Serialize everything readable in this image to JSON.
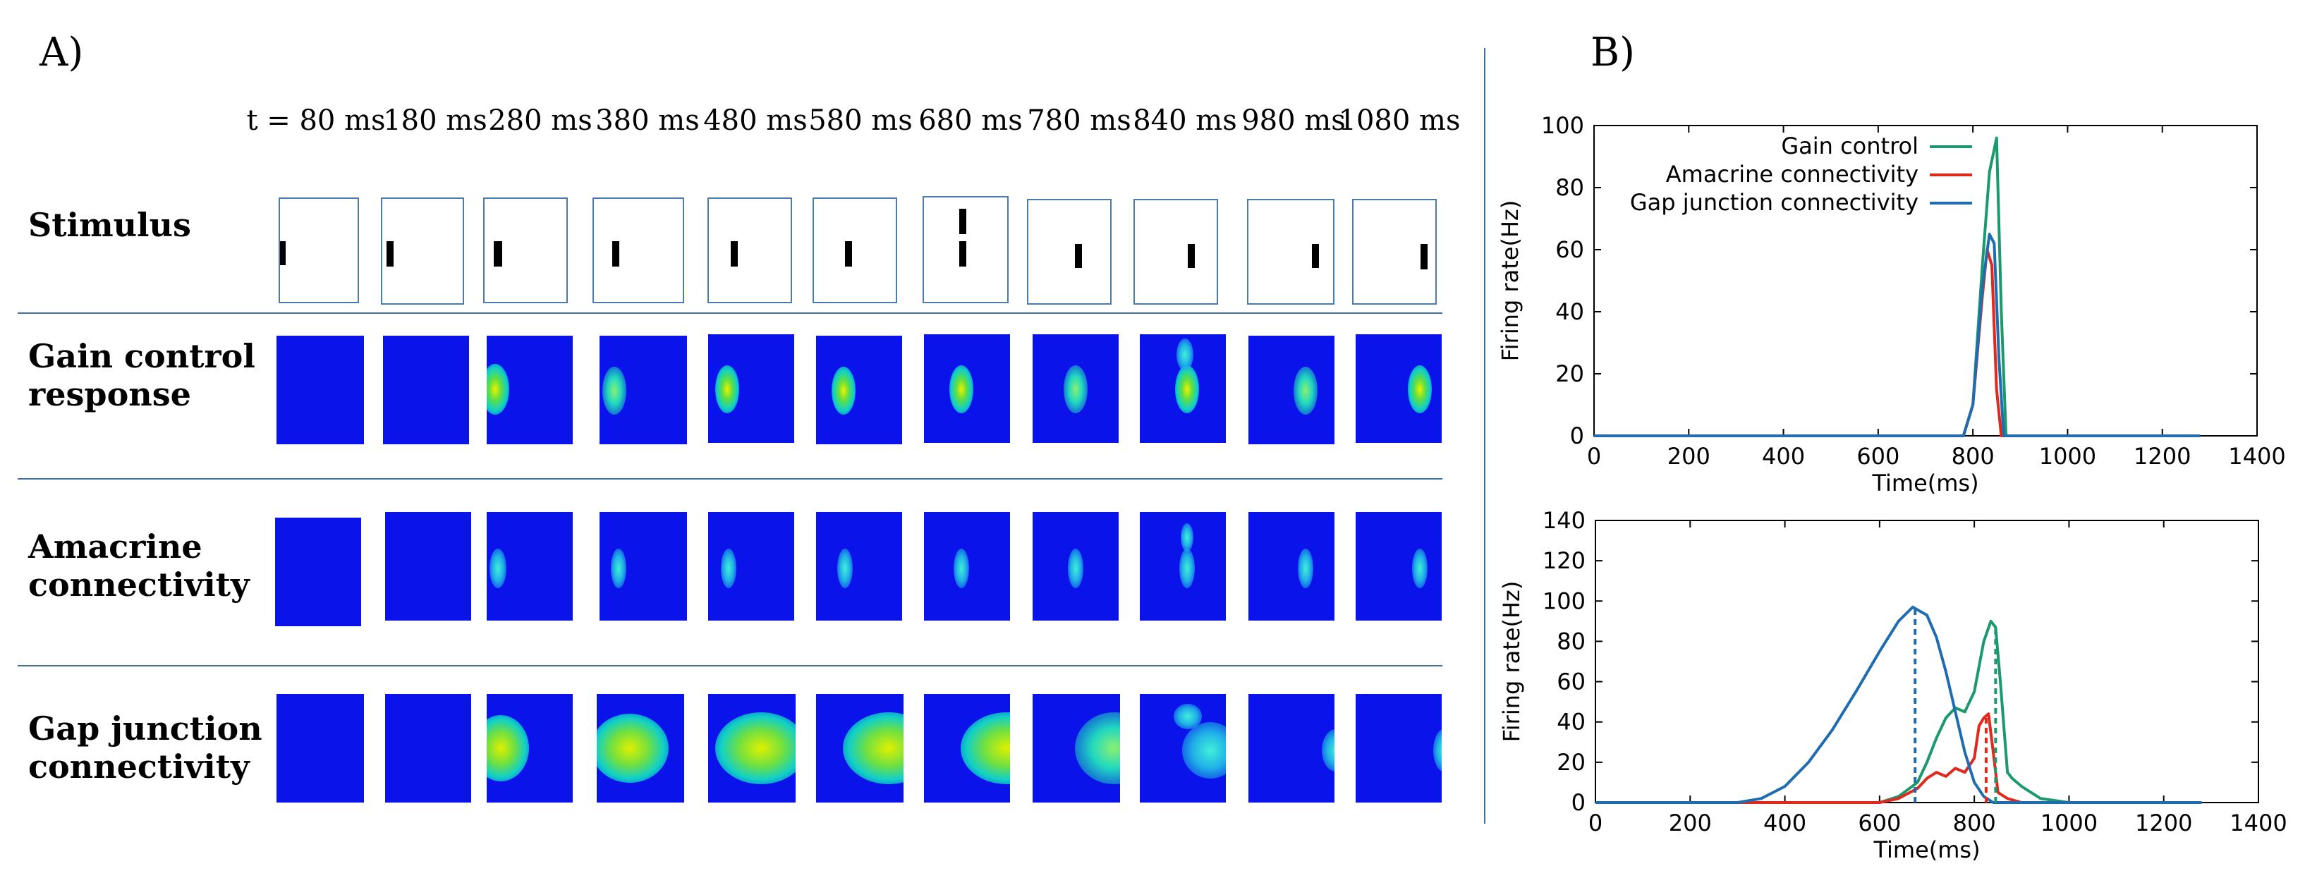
{
  "panel_a": {
    "label": "A)",
    "time_labels": [
      "t = 80 ms",
      "180 ms",
      "280 ms",
      "380 ms",
      "480 ms",
      "580 ms",
      "680 ms",
      "780 ms",
      "840 ms",
      "980 ms",
      "1080 ms"
    ],
    "rows": [
      {
        "label_line1": "Stimulus",
        "label_line2": ""
      },
      {
        "label_line1": "Gain control",
        "label_line2": "response"
      },
      {
        "label_line1": "Amacrine",
        "label_line2": "connectivity"
      },
      {
        "label_line1": "Gap junction",
        "label_line2": "connectivity"
      }
    ],
    "colors": {
      "heatmap_background": "#0a14ea",
      "frame_border": "#4a79b4",
      "separator": "#3f6ea8"
    }
  },
  "panel_b": {
    "label": "B)"
  },
  "chart_data": [
    {
      "type": "line",
      "xlabel": "Time(ms)",
      "ylabel": "Firing rate(Hz)",
      "xlim": [
        0,
        1400
      ],
      "ylim": [
        0,
        100
      ],
      "xticks": [
        0,
        200,
        400,
        600,
        800,
        1000,
        1200,
        1400
      ],
      "yticks": [
        0,
        20,
        40,
        60,
        80,
        100
      ],
      "legend_position": "top-right",
      "series": [
        {
          "name": "Gain control",
          "color": "#1a9a6c",
          "x": [
            0,
            780,
            800,
            820,
            835,
            850,
            860,
            870,
            890,
            1280
          ],
          "y": [
            0,
            0,
            10,
            55,
            85,
            96,
            40,
            0,
            0,
            0
          ]
        },
        {
          "name": "Amacrine connectivity",
          "color": "#e0281c",
          "x": [
            0,
            780,
            800,
            820,
            830,
            840,
            850,
            860,
            1280
          ],
          "y": [
            0,
            0,
            10,
            45,
            60,
            55,
            15,
            0,
            0
          ]
        },
        {
          "name": "Gap junction connectivity",
          "color": "#1f6cb0",
          "x": [
            0,
            780,
            800,
            820,
            835,
            845,
            855,
            865,
            890,
            1280
          ],
          "y": [
            0,
            0,
            10,
            48,
            65,
            62,
            25,
            0,
            0,
            0
          ]
        }
      ]
    },
    {
      "type": "line",
      "xlabel": "Time(ms)",
      "ylabel": "Firing rate(Hz)",
      "xlim": [
        0,
        1400
      ],
      "ylim": [
        0,
        140
      ],
      "xticks": [
        0,
        200,
        400,
        600,
        800,
        1000,
        1200,
        1400
      ],
      "yticks": [
        0,
        20,
        40,
        60,
        80,
        100,
        120,
        140
      ],
      "series": [
        {
          "color": "#1a9a6c",
          "x": [
            0,
            600,
            640,
            680,
            700,
            720,
            740,
            760,
            780,
            800,
            820,
            835,
            845,
            855,
            870,
            880,
            900,
            940,
            1000,
            1280
          ],
          "y": [
            0,
            0,
            3,
            10,
            20,
            32,
            42,
            47,
            45,
            55,
            80,
            90,
            87,
            60,
            15,
            12,
            8,
            2,
            0,
            0
          ]
        },
        {
          "color": "#e0281c",
          "x": [
            0,
            600,
            640,
            680,
            700,
            720,
            740,
            760,
            780,
            800,
            810,
            820,
            830,
            840,
            850,
            870,
            900,
            1280
          ],
          "y": [
            0,
            0,
            2,
            7,
            12,
            15,
            13,
            17,
            15,
            22,
            38,
            42,
            44,
            25,
            5,
            2,
            0,
            0
          ]
        },
        {
          "color": "#1f6cb0",
          "x": [
            0,
            300,
            350,
            400,
            450,
            500,
            550,
            600,
            640,
            670,
            685,
            700,
            720,
            740,
            760,
            780,
            800,
            820,
            840,
            1280
          ],
          "y": [
            0,
            0,
            2,
            8,
            20,
            36,
            55,
            75,
            90,
            97,
            95,
            93,
            82,
            65,
            45,
            25,
            10,
            3,
            0,
            0
          ]
        }
      ],
      "vertical_markers": [
        {
          "x": 675,
          "y": 97,
          "color": "#1f6cb0"
        },
        {
          "x": 825,
          "y": 44,
          "color": "#e0281c"
        },
        {
          "x": 845,
          "y": 88,
          "color": "#1a9a6c"
        }
      ]
    }
  ]
}
